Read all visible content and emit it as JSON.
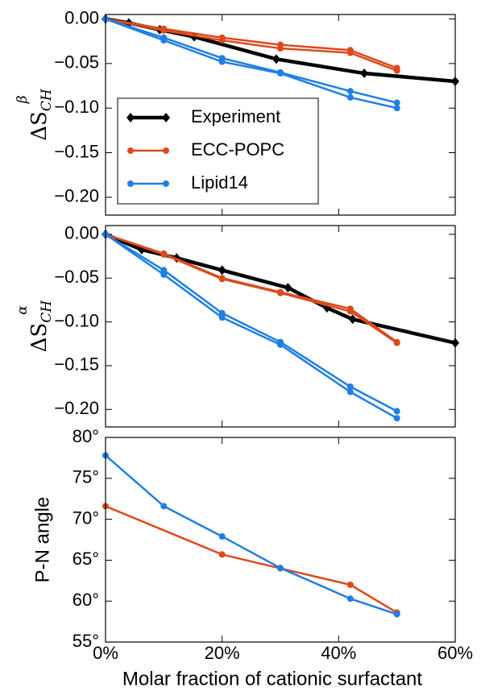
{
  "chart_data": [
    {
      "type": "line",
      "ylabel": {
        "base": "ΔS",
        "sub": "CH",
        "sup": "β"
      },
      "xlim": [
        0,
        60
      ],
      "xticks": [
        0,
        20,
        40,
        60
      ],
      "ylim": [
        -0.22,
        0.005
      ],
      "yticks": [
        {
          "value": 0,
          "label": "0.00"
        },
        {
          "value": -0.05,
          "label": "−0.05"
        },
        {
          "value": -0.1,
          "label": "−0.10"
        },
        {
          "value": -0.15,
          "label": "−0.15"
        },
        {
          "value": -0.2,
          "label": "−0.20"
        }
      ],
      "legend": "lower left",
      "series": [
        {
          "name": "Experiment",
          "color": "#000000",
          "marker": "diamond",
          "x": [
            0,
            4,
            9.3,
            15.2,
            29.3,
            44.4,
            60
          ],
          "lines": [
            [
              0,
              -0.0045,
              -0.012,
              -0.02,
              -0.045,
              -0.061,
              -0.07
            ]
          ]
        },
        {
          "name": "ECC-POPC",
          "color": "#dc4a1c",
          "marker": "circle",
          "x": [
            0,
            10,
            20,
            30,
            42,
            50
          ],
          "lines": [
            [
              0,
              -0.011,
              -0.021,
              -0.029,
              -0.035,
              -0.055
            ],
            [
              0,
              -0.013,
              -0.024,
              -0.033,
              -0.038,
              -0.058
            ]
          ]
        },
        {
          "name": "Lipid14",
          "color": "#1f7fe3",
          "marker": "circle",
          "x": [
            0,
            10,
            20,
            30,
            42,
            50
          ],
          "lines": [
            [
              0,
              -0.021,
              -0.044,
              -0.06,
              -0.081,
              -0.094
            ],
            [
              0,
              -0.024,
              -0.048,
              -0.061,
              -0.088,
              -0.1
            ]
          ]
        }
      ]
    },
    {
      "type": "line",
      "ylabel": {
        "base": "ΔS",
        "sub": "CH",
        "sup": "α"
      },
      "xlim": [
        0,
        60
      ],
      "xticks": [
        0,
        20,
        40,
        60
      ],
      "ylim": [
        -0.22,
        0.01
      ],
      "yticks": [
        {
          "value": 0,
          "label": "0.00"
        },
        {
          "value": -0.05,
          "label": "−0.05"
        },
        {
          "value": -0.1,
          "label": "−0.10"
        },
        {
          "value": -0.15,
          "label": "−0.15"
        },
        {
          "value": -0.2,
          "label": "−0.20"
        }
      ],
      "series": [
        {
          "name": "Experiment",
          "color": "#000000",
          "marker": "diamond",
          "x": [
            0,
            6.2,
            12.2,
            20,
            31.3,
            38,
            42.4,
            60
          ],
          "lines": [
            [
              0,
              -0.0175,
              -0.027,
              -0.041,
              -0.061,
              -0.084,
              -0.097,
              -0.124
            ]
          ]
        },
        {
          "name": "ECC-POPC",
          "color": "#dc4a1c",
          "marker": "circle",
          "x": [
            0,
            10,
            20,
            30,
            42,
            50
          ],
          "lines": [
            [
              0,
              -0.022,
              -0.05,
              -0.066,
              -0.085,
              -0.123
            ],
            [
              0,
              -0.023,
              -0.051,
              -0.067,
              -0.088,
              -0.124
            ]
          ]
        },
        {
          "name": "Lipid14",
          "color": "#1f7fe3",
          "marker": "circle",
          "x": [
            0,
            10,
            20,
            30,
            42,
            50
          ],
          "lines": [
            [
              0,
              -0.041,
              -0.09,
              -0.123,
              -0.174,
              -0.202
            ],
            [
              0,
              -0.046,
              -0.095,
              -0.126,
              -0.18,
              -0.21
            ]
          ]
        }
      ]
    },
    {
      "type": "line",
      "ylabel": "P-N angle",
      "xlabel": "Molar fraction of cationic surfactant",
      "xlim": [
        0,
        60
      ],
      "xticks": [
        {
          "value": 0,
          "label": "0%"
        },
        {
          "value": 20,
          "label": "20%"
        },
        {
          "value": 40,
          "label": "40%"
        },
        {
          "value": 60,
          "label": "60%"
        }
      ],
      "ylim": [
        55,
        80
      ],
      "yticks": [
        {
          "value": 55,
          "label": "55°"
        },
        {
          "value": 60,
          "label": "60°"
        },
        {
          "value": 65,
          "label": "65°"
        },
        {
          "value": 70,
          "label": "70°"
        },
        {
          "value": 75,
          "label": "75°"
        },
        {
          "value": 80,
          "label": "80°"
        }
      ],
      "series": [
        {
          "name": "ECC-POPC",
          "color": "#dc4a1c",
          "marker": "circle",
          "x": [
            0,
            20,
            30,
            42,
            50
          ],
          "lines": [
            [
              71.6,
              65.7,
              64.0,
              62.0,
              58.6
            ]
          ]
        },
        {
          "name": "Lipid14",
          "color": "#1f7fe3",
          "marker": "circle",
          "x": [
            0,
            10,
            20,
            30,
            42,
            50
          ],
          "lines": [
            [
              77.8,
              71.6,
              67.9,
              64.05,
              60.3,
              58.4
            ]
          ]
        }
      ]
    }
  ]
}
